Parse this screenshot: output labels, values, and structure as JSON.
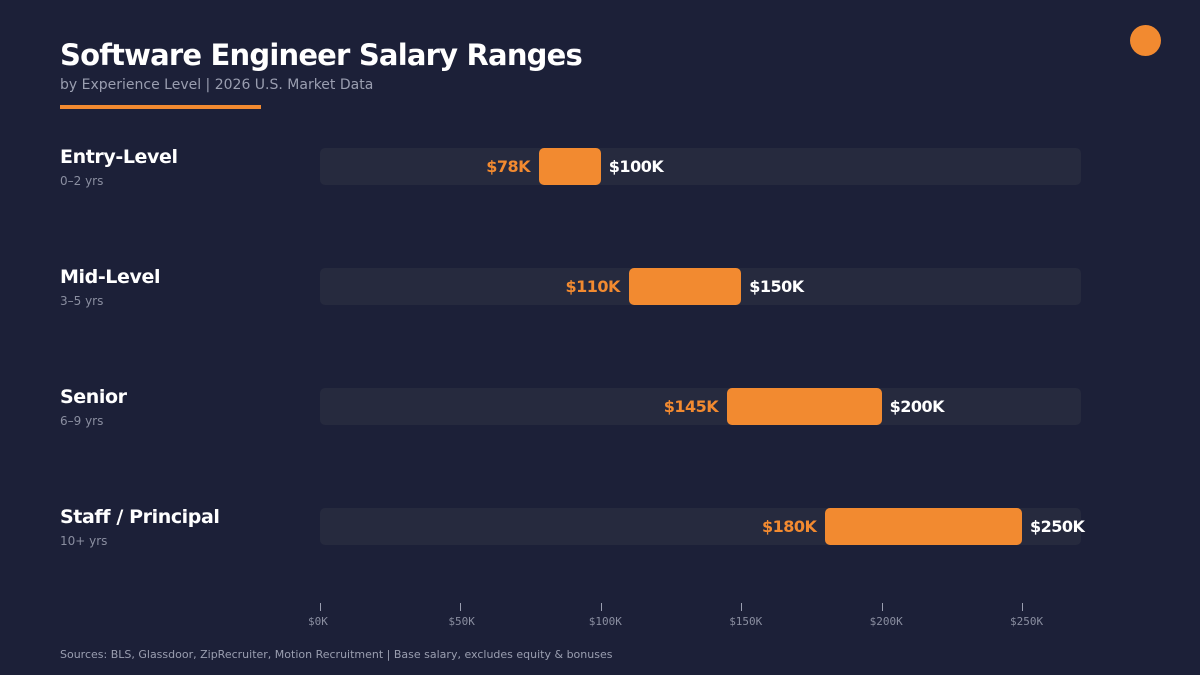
{
  "header": {
    "title": "Software Engineer Salary Ranges",
    "subtitle": "by Experience Level  |  2026 U.S. Market Data"
  },
  "footer": {
    "sources": "Sources: BLS, Glassdoor, ZipRecruiter, Motion Recruitment  |  Base salary, excludes equity & bonuses"
  },
  "colors": {
    "background": "#1c2038",
    "track": "#262a3e",
    "accent": "#f28a30"
  },
  "chart_data": {
    "type": "bar",
    "subtype": "floating-range",
    "orientation": "horizontal",
    "title": "Software Engineer Salary Ranges",
    "subtitle": "by Experience Level  |  2026 U.S. Market Data",
    "xlim": [
      0,
      270
    ],
    "unit": "$K",
    "grid": false,
    "categories": [
      "Entry-Level",
      "Mid-Level",
      "Senior",
      "Staff / Principal"
    ],
    "experience": [
      "0–2 yrs",
      "3–5 yrs",
      "6–9 yrs",
      "10+ yrs"
    ],
    "low": [
      78,
      110,
      145,
      180
    ],
    "high": [
      100,
      150,
      200,
      250
    ],
    "low_labels": [
      "$78K",
      "$110K",
      "$145K",
      "$180K"
    ],
    "high_labels": [
      "$100K",
      "$150K",
      "$200K",
      "$250K"
    ],
    "ticks": [
      0,
      50,
      100,
      150,
      200,
      250
    ],
    "tick_labels": [
      "$0K",
      "$50K",
      "$100K",
      "$150K",
      "$200K",
      "$250K"
    ]
  }
}
